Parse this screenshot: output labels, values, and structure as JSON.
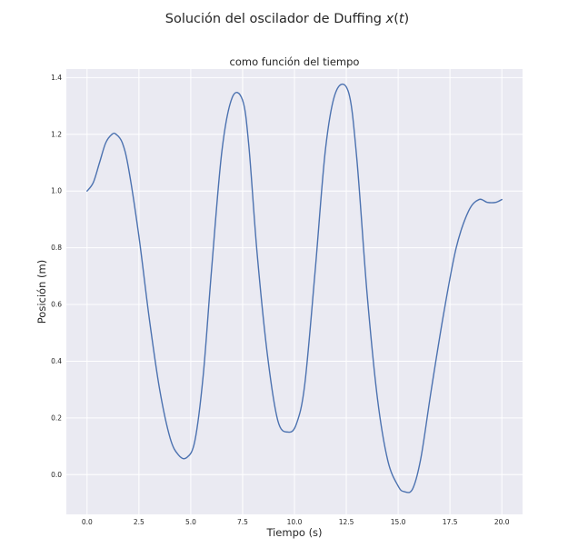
{
  "figure": {
    "suptitle_prefix": "Solución del oscilador de Duffing ",
    "suptitle_math": "x",
    "suptitle_suffix_open": "(",
    "suptitle_math_t": "t",
    "suptitle_suffix_close": ")"
  },
  "chart_data": {
    "type": "line",
    "title": "Solución del oscilador de Duffing x(t)",
    "subtitle": "como función del tiempo",
    "xlabel": "Tiempo (s)",
    "ylabel": "Posición (m)",
    "xlim": [
      -1.0,
      21.0
    ],
    "ylim": [
      -0.14,
      1.43
    ],
    "xticks": [
      0.0,
      2.5,
      5.0,
      7.5,
      10.0,
      12.5,
      15.0,
      17.5,
      20.0
    ],
    "xtick_labels": [
      "0.0",
      "2.5",
      "5.0",
      "7.5",
      "10.0",
      "12.5",
      "15.0",
      "17.5",
      "20.0"
    ],
    "yticks": [
      0.0,
      0.2,
      0.4,
      0.6,
      0.8,
      1.0,
      1.2,
      1.4
    ],
    "ytick_labels": [
      "0.0",
      "0.2",
      "0.4",
      "0.6",
      "0.8",
      "1.0",
      "1.2",
      "1.4"
    ],
    "grid": true,
    "background": "#eaeaf2",
    "line_color": "#4c72b0",
    "series": [
      {
        "x": [
          0.0,
          0.3,
          0.6,
          0.9,
          1.2,
          1.4,
          1.7,
          2.0,
          2.5,
          3.0,
          3.5,
          4.0,
          4.4,
          4.8,
          5.2,
          5.6,
          6.0,
          6.5,
          7.0,
          7.5,
          7.8,
          8.2,
          8.7,
          9.2,
          9.7,
          10.1,
          10.5,
          11.0,
          11.5,
          12.0,
          12.6,
          13.0,
          13.5,
          14.0,
          14.5,
          15.0,
          15.3,
          15.7,
          16.1,
          16.6,
          17.2,
          17.8,
          18.4,
          18.9,
          19.3,
          19.7,
          20.0
        ],
        "y": [
          1.0,
          1.03,
          1.1,
          1.17,
          1.2,
          1.2,
          1.17,
          1.08,
          0.84,
          0.55,
          0.3,
          0.13,
          0.07,
          0.06,
          0.12,
          0.35,
          0.72,
          1.14,
          1.33,
          1.32,
          1.16,
          0.78,
          0.42,
          0.19,
          0.15,
          0.18,
          0.32,
          0.72,
          1.15,
          1.35,
          1.35,
          1.12,
          0.64,
          0.27,
          0.05,
          -0.04,
          -0.06,
          -0.05,
          0.06,
          0.3,
          0.57,
          0.8,
          0.93,
          0.97,
          0.96,
          0.96,
          0.97
        ]
      }
    ]
  }
}
